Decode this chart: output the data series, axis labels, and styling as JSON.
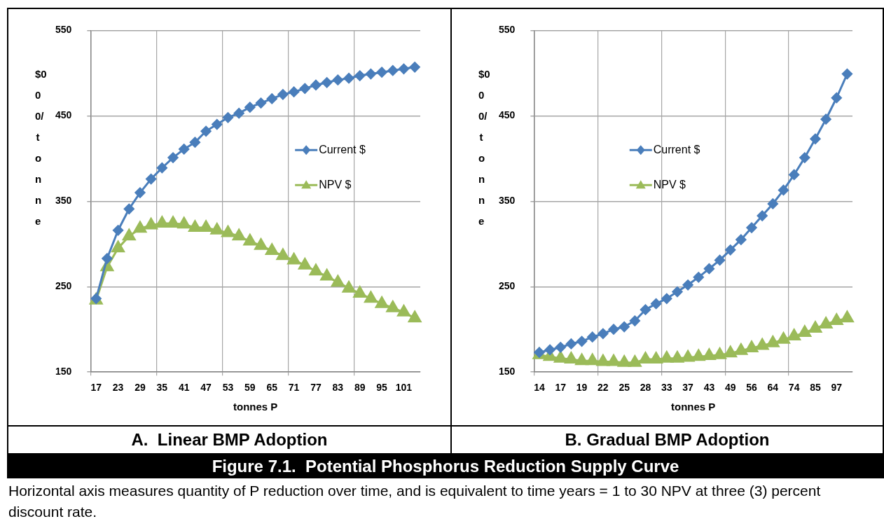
{
  "chart_data": [
    {
      "type": "line",
      "title": "A.  Linear BMP Adoption",
      "xlabel": "tonnes P",
      "ylabel": "$000/ tonne",
      "categories": [
        "17",
        null,
        "23",
        null,
        "29",
        null,
        "35",
        null,
        "41",
        null,
        "47",
        null,
        "53",
        null,
        "59",
        null,
        "65",
        null,
        "71",
        null,
        "77",
        null,
        "83",
        null,
        "89",
        null,
        "95",
        null,
        "101",
        null
      ],
      "series": [
        {
          "name": "Current $",
          "color": "#4a7ebb",
          "marker": "diamond",
          "values": [
            236,
            283,
            316,
            341,
            360,
            376,
            389,
            401,
            411,
            419,
            432,
            440,
            448,
            453,
            460,
            465,
            470,
            475,
            478,
            482,
            486,
            489,
            492,
            494,
            497,
            499,
            501,
            503,
            505,
            507
          ]
        },
        {
          "name": "NPV $",
          "color": "#9bbb59",
          "marker": "triangle",
          "values": [
            234,
            273,
            295,
            309,
            318,
            322,
            324,
            324,
            323,
            319,
            319,
            316,
            313,
            309,
            303,
            298,
            292,
            286,
            281,
            275,
            268,
            262,
            255,
            248,
            242,
            236,
            230,
            225,
            220,
            213
          ]
        }
      ],
      "ylim": [
        150,
        550
      ],
      "yticks": [
        150,
        250,
        350,
        450,
        550
      ],
      "grid": true,
      "legend": "right",
      "annotations": [
        "Figure 7.1.  Potential Phosphorus Reduction Supply Curve",
        "Horizontal axis measures quantity of P reduction over time, and is equivalent to time years = 1 to 30 NPV at three (3) percent discount rate."
      ]
    },
    {
      "type": "line",
      "title": "B. Gradual BMP Adoption",
      "xlabel": "tonnes P",
      "ylabel": "$000/ tonne",
      "categories": [
        "14",
        null,
        "17",
        null,
        "19",
        null,
        "22",
        null,
        "25",
        null,
        "28",
        null,
        "33",
        null,
        "37",
        null,
        "43",
        null,
        "49",
        null,
        "56",
        null,
        "64",
        null,
        "74",
        null,
        "85",
        null,
        "97",
        null
      ],
      "series": [
        {
          "name": "Current $",
          "color": "#4a7ebb",
          "marker": "diamond",
          "values": [
            173,
            176,
            179,
            183,
            186,
            191,
            195,
            200,
            203,
            210,
            223,
            230,
            236,
            244,
            252,
            261,
            271,
            281,
            293,
            305,
            319,
            333,
            347,
            363,
            381,
            401,
            423,
            446,
            471,
            499
          ]
        },
        {
          "name": "NPV $",
          "color": "#9bbb59",
          "marker": "triangle",
          "values": [
            170,
            168,
            166,
            165,
            163,
            163,
            162,
            162,
            161,
            161,
            165,
            165,
            166,
            166,
            167,
            168,
            169,
            170,
            172,
            175,
            178,
            181,
            184,
            188,
            192,
            196,
            201,
            206,
            210,
            213
          ]
        }
      ],
      "ylim": [
        150,
        550
      ],
      "yticks": [
        150,
        250,
        350,
        450,
        550
      ],
      "grid": true,
      "legend": "center"
    }
  ]
}
